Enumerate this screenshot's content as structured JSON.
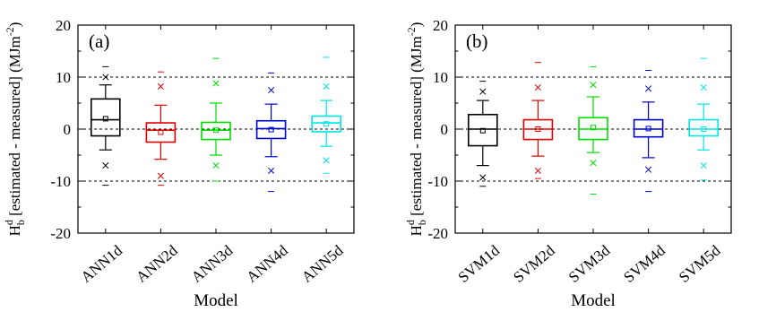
{
  "chart_data": [
    {
      "type": "box",
      "panel_label": "(a)",
      "xlabel": "Model",
      "ylabel": "H_b^d [estimated - measured] (MJm^-2)",
      "ylabel_parts": {
        "base": "H",
        "sub": "b",
        "sup": "d",
        "text": " [estimated - measured] (MJm",
        "unit_sup": "-2",
        "close": ")"
      },
      "ylim": [
        -20,
        20
      ],
      "yticks": [
        -20,
        -10,
        0,
        10,
        20
      ],
      "reference_lines": [
        -10,
        0,
        10
      ],
      "categories": [
        "ANN1d",
        "ANN2d",
        "ANN3d",
        "ANN4d",
        "ANN5d"
      ],
      "colors": [
        "#000000",
        "#e00000",
        "#00dd00",
        "#0000cc",
        "#00e5e5"
      ],
      "boxes": [
        {
          "whisker_low": -4.0,
          "q1": -1.3,
          "median": 1.8,
          "q3": 5.8,
          "whisker_high": 8.5,
          "mean": 2.0,
          "p1": -7.0,
          "p99": 10.0,
          "min": -10.8,
          "max": 12.0
        },
        {
          "whisker_low": -5.8,
          "q1": -2.5,
          "median": -0.2,
          "q3": 1.2,
          "whisker_high": 4.6,
          "mean": -0.6,
          "p1": -9.0,
          "p99": 8.2,
          "min": -10.8,
          "max": 11.0
        },
        {
          "whisker_low": -5.0,
          "q1": -2.0,
          "median": -0.2,
          "q3": 1.3,
          "whisker_high": 5.0,
          "mean": -0.2,
          "p1": -7.0,
          "p99": 8.8,
          "min": -10.0,
          "max": 13.6
        },
        {
          "whisker_low": -5.3,
          "q1": -1.8,
          "median": 0.1,
          "q3": 1.6,
          "whisker_high": 4.8,
          "mean": -0.1,
          "p1": -8.0,
          "p99": 7.5,
          "min": -12.0,
          "max": 10.8
        },
        {
          "whisker_low": -3.3,
          "q1": -0.5,
          "median": 1.2,
          "q3": 2.5,
          "whisker_high": 5.5,
          "mean": 1.0,
          "p1": -6.0,
          "p99": 8.2,
          "min": -8.5,
          "max": 13.8
        }
      ]
    },
    {
      "type": "box",
      "panel_label": "(b)",
      "xlabel": "Model",
      "ylabel": "H_b^d [estimated - measured] (MJm^-2)",
      "ylabel_parts": {
        "base": "H",
        "sub": "b",
        "sup": "d",
        "text": " [estimated - measured] (MJm",
        "unit_sup": "-2",
        "close": ")"
      },
      "ylim": [
        -20,
        20
      ],
      "yticks": [
        -20,
        -10,
        0,
        10,
        20
      ],
      "reference_lines": [
        -10,
        0,
        10
      ],
      "categories": [
        "SVM1d",
        "SVM2d",
        "SVM3d",
        "SVM4d",
        "SVM5d"
      ],
      "colors": [
        "#000000",
        "#e00000",
        "#00dd00",
        "#0000cc",
        "#00e5e5"
      ],
      "boxes": [
        {
          "whisker_low": -7.0,
          "q1": -3.2,
          "median": 0.0,
          "q3": 2.8,
          "whisker_high": 5.5,
          "mean": -0.3,
          "p1": -9.3,
          "p99": 7.2,
          "min": -11.0,
          "max": 9.2
        },
        {
          "whisker_low": -5.2,
          "q1": -2.0,
          "median": 0.0,
          "q3": 1.8,
          "whisker_high": 5.5,
          "mean": 0.0,
          "p1": -8.0,
          "p99": 8.0,
          "min": -9.5,
          "max": 12.8
        },
        {
          "whisker_low": -4.5,
          "q1": -2.0,
          "median": 0.0,
          "q3": 2.2,
          "whisker_high": 6.2,
          "mean": 0.3,
          "p1": -6.5,
          "p99": 8.5,
          "min": -12.5,
          "max": 12.0
        },
        {
          "whisker_low": -5.5,
          "q1": -1.5,
          "median": 0.0,
          "q3": 1.8,
          "whisker_high": 5.2,
          "mean": 0.1,
          "p1": -7.8,
          "p99": 7.8,
          "min": -12.0,
          "max": 11.3
        },
        {
          "whisker_low": -4.0,
          "q1": -1.3,
          "median": 0.0,
          "q3": 1.8,
          "whisker_high": 4.8,
          "mean": 0.0,
          "p1": -7.0,
          "p99": 8.0,
          "min": -9.8,
          "max": 13.6
        }
      ]
    }
  ]
}
